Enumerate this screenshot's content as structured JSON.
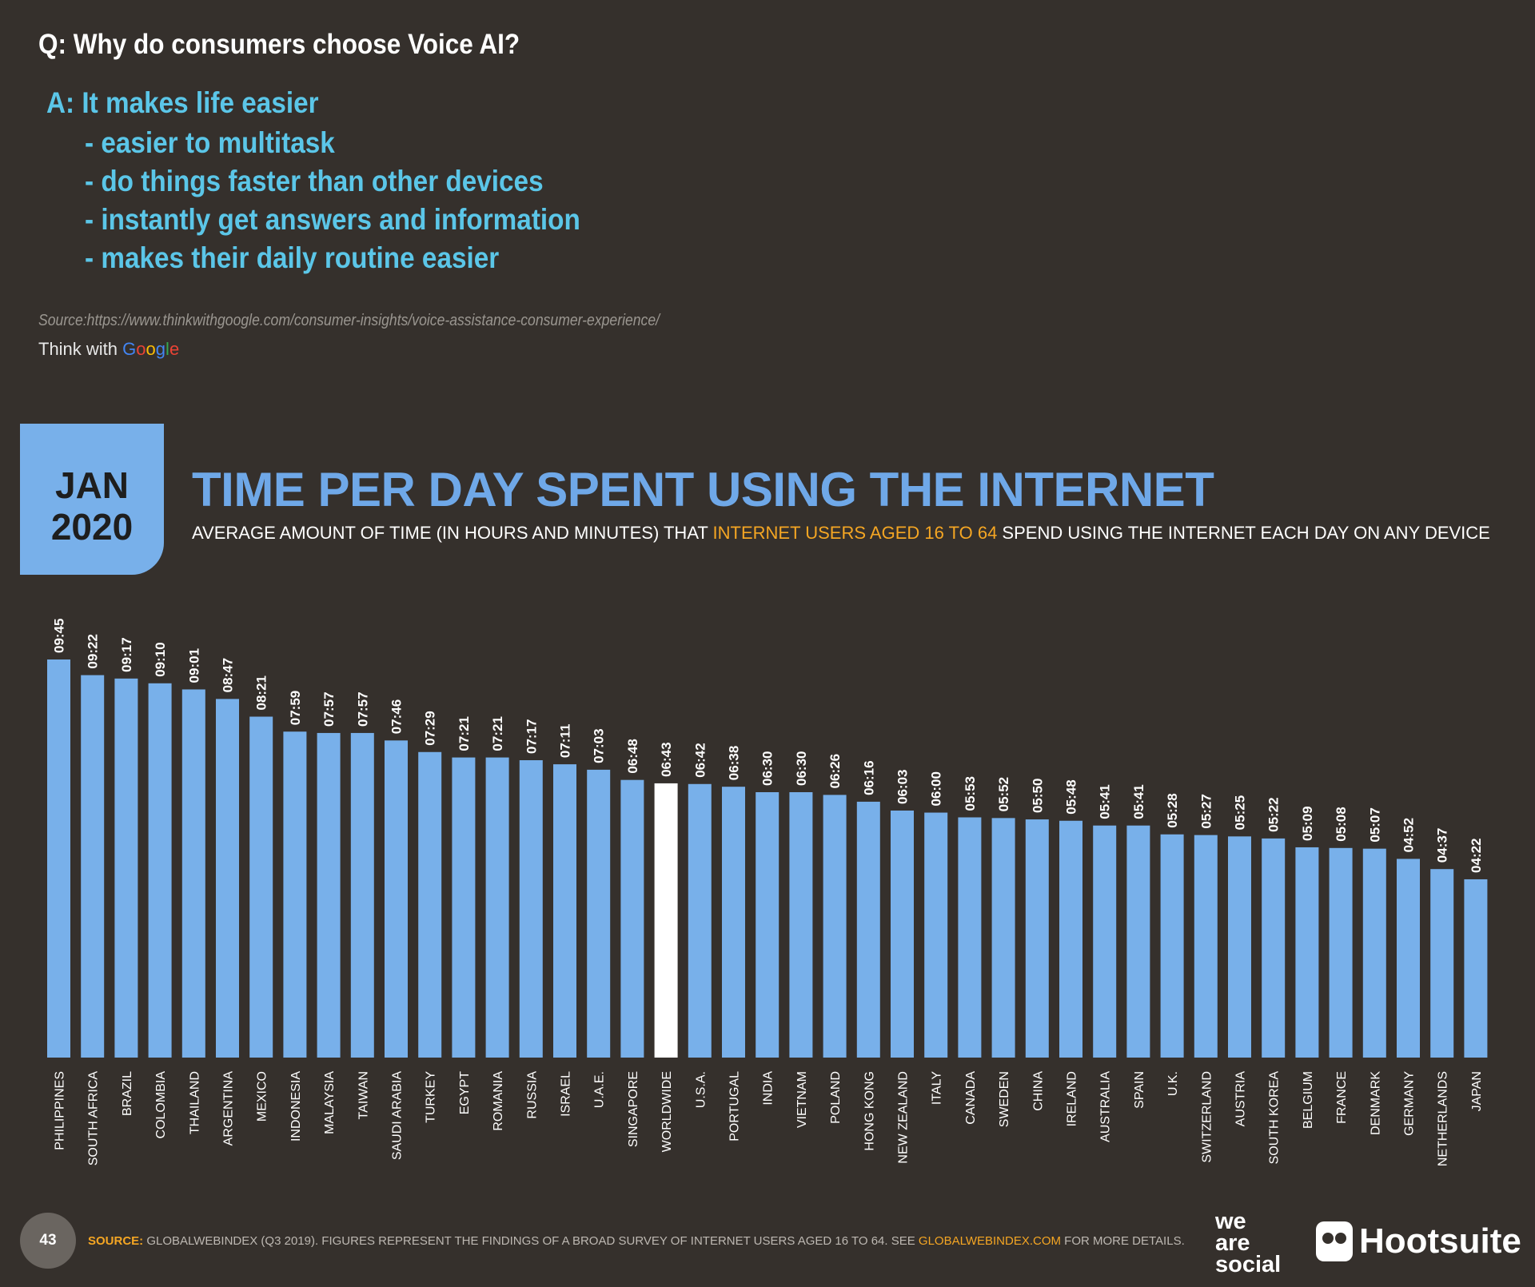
{
  "question": "Q:  Why do consumers choose Voice AI?",
  "answer": "A:  It makes life easier",
  "bullets": [
    "- easier to multitask",
    "- do things faster than other devices",
    "- instantly get answers and information",
    "- makes their daily routine easier"
  ],
  "source_url": "Source:https://www.thinkwithgoogle.com/consumer-insights/voice-assistance-consumer-experience/",
  "think_with": "Think with",
  "google": {
    "g": "G",
    "o1": "o",
    "o2": "o",
    "g2": "g",
    "l": "l",
    "e": "e"
  },
  "badge": {
    "month": "JAN",
    "year": "2020"
  },
  "title": "TIME PER DAY SPENT USING THE INTERNET",
  "subtitle": {
    "pre": "AVERAGE AMOUNT OF TIME (IN HOURS AND MINUTES) THAT ",
    "highlight": "INTERNET USERS AGED 16 TO 64",
    "post": " SPEND USING THE INTERNET EACH DAY ON ANY DEVICE"
  },
  "colors": {
    "bar": "#78b0ea",
    "highlight_bar": "#ffffff",
    "background": "#35302c",
    "accent": "#f5a623"
  },
  "chart_data": {
    "type": "bar",
    "unit": "hours:minutes",
    "highlight": "WORLDWIDE",
    "categories": [
      "PHILIPPINES",
      "SOUTH AFRICA",
      "BRAZIL",
      "COLOMBIA",
      "THAILAND",
      "ARGENTINA",
      "MEXICO",
      "INDONESIA",
      "MALAYSIA",
      "TAIWAN",
      "SAUDI ARABIA",
      "TURKEY",
      "EGYPT",
      "ROMANIA",
      "RUSSIA",
      "ISRAEL",
      "U.A.E.",
      "SINGAPORE",
      "WORLDWIDE",
      "U.S.A.",
      "PORTUGAL",
      "INDIA",
      "VIETNAM",
      "POLAND",
      "HONG KONG",
      "NEW ZEALAND",
      "ITALY",
      "CANADA",
      "SWEDEN",
      "CHINA",
      "IRELAND",
      "AUSTRALIA",
      "SPAIN",
      "U.K.",
      "SWITZERLAND",
      "AUSTRIA",
      "SOUTH KOREA",
      "BELGIUM",
      "FRANCE",
      "DENMARK",
      "GERMANY",
      "NETHERLANDS",
      "JAPAN"
    ],
    "labels": [
      "09:45",
      "09:22",
      "09:17",
      "09:10",
      "09:01",
      "08:47",
      "08:21",
      "07:59",
      "07:57",
      "07:57",
      "07:46",
      "07:29",
      "07:21",
      "07:21",
      "07:17",
      "07:11",
      "07:03",
      "06:48",
      "06:43",
      "06:42",
      "06:38",
      "06:30",
      "06:30",
      "06:26",
      "06:16",
      "06:03",
      "06:00",
      "05:53",
      "05:52",
      "05:50",
      "05:48",
      "05:41",
      "05:41",
      "05:28",
      "05:27",
      "05:25",
      "05:22",
      "05:09",
      "05:08",
      "05:07",
      "04:52",
      "04:37",
      "04:22"
    ],
    "values_minutes": [
      585,
      562,
      557,
      550,
      541,
      527,
      501,
      479,
      477,
      477,
      466,
      449,
      441,
      441,
      437,
      431,
      423,
      408,
      403,
      402,
      398,
      390,
      390,
      386,
      376,
      363,
      360,
      353,
      352,
      350,
      348,
      341,
      341,
      328,
      327,
      325,
      322,
      309,
      308,
      307,
      292,
      277,
      262
    ]
  },
  "footer": {
    "page": "43",
    "source_label": "SOURCE:",
    "source_text": " GLOBALWEBINDEX (Q3 2019). FIGURES REPRESENT THE FINDINGS OF A BROAD SURVEY OF INTERNET USERS AGED 16 TO 64. SEE ",
    "source_link": "GLOBALWEBINDEX.COM",
    "source_end": " FOR MORE DETAILS.",
    "brand1": [
      "we",
      "are",
      "social"
    ],
    "brand2": "Hootsuite"
  }
}
